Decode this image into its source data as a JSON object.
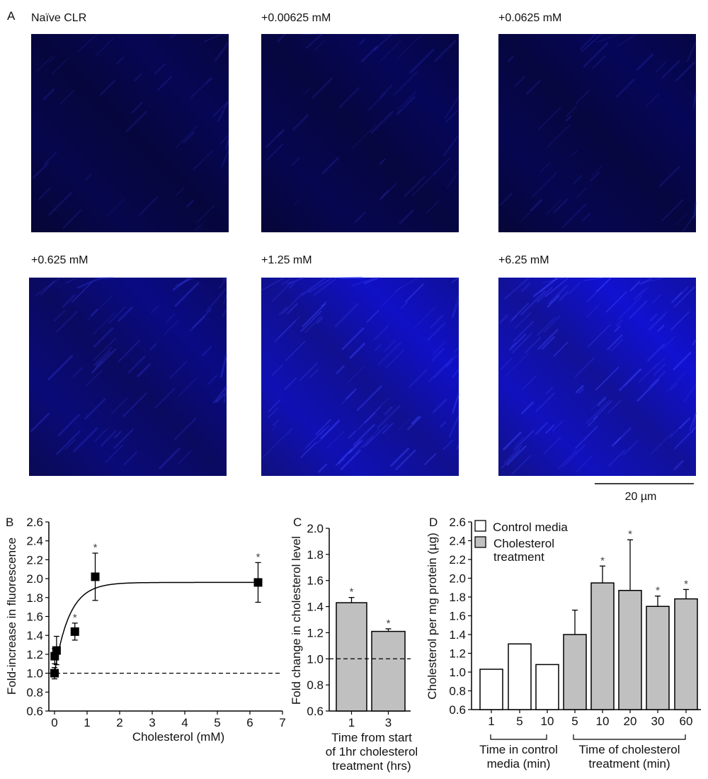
{
  "panel_a": {
    "label": "A",
    "images": [
      {
        "title": "Naïve CLR",
        "intensity": 0.08
      },
      {
        "title": "+0.00625 mM",
        "intensity": 0.1
      },
      {
        "title": "+0.0625 mM",
        "intensity": 0.1
      },
      {
        "title": "+0.625 mM",
        "intensity": 0.3
      },
      {
        "title": "+1.25 mM",
        "intensity": 0.6
      },
      {
        "title": "+6.25 mM",
        "intensity": 0.65
      }
    ],
    "scale_bar": "20 µm"
  },
  "chart_data": [
    {
      "panel": "B",
      "type": "scatter",
      "xlabel": "Cholesterol (mM)",
      "ylabel": "Fold-increase in fluorescence",
      "xlim": [
        0,
        7
      ],
      "ylim": [
        0.6,
        2.6
      ],
      "xticks": [
        "0",
        "1",
        "2",
        "3",
        "4",
        "5",
        "6",
        "7"
      ],
      "yticks": [
        "0.6",
        "0.8",
        "1.0",
        "1.2",
        "1.4",
        "1.6",
        "1.8",
        "2.0",
        "2.2",
        "2.4",
        "2.6"
      ],
      "x": [
        0,
        0.00625,
        0.0625,
        0.625,
        1.25,
        6.25
      ],
      "y": [
        1.0,
        1.18,
        1.24,
        1.44,
        2.02,
        1.96
      ],
      "error": [
        0.06,
        0.08,
        0.15,
        0.09,
        0.25,
        0.21
      ],
      "significant": [
        false,
        false,
        false,
        true,
        true,
        true
      ],
      "fit": {
        "type": "exponential-rise",
        "baseline": 1.0,
        "plateau": 1.96,
        "rate": 2.2
      },
      "reference_line": 1.0,
      "asterisk": "*"
    },
    {
      "panel": "C",
      "type": "bar",
      "ylabel": "Fold change in cholesterol level",
      "xlabel_lines": [
        "Time from start",
        "of 1hr cholesterol",
        "treatment (hrs)"
      ],
      "ylim": [
        0.6,
        2.0
      ],
      "yticks": [
        "0.6",
        "0.8",
        "1.0",
        "1.2",
        "1.4",
        "1.6",
        "1.8",
        "2.0"
      ],
      "categories": [
        "1",
        "3"
      ],
      "values": [
        1.43,
        1.21
      ],
      "error": [
        0.04,
        0.02
      ],
      "significant": [
        true,
        true
      ],
      "reference_line": 1.0,
      "asterisk": "*"
    },
    {
      "panel": "D",
      "type": "bar",
      "ylabel": "Cholesterol per mg protein (µg)",
      "ylim": [
        0.6,
        2.6
      ],
      "yticks": [
        "0.6",
        "0.8",
        "1.0",
        "1.2",
        "1.4",
        "1.6",
        "1.8",
        "2.0",
        "2.2",
        "2.4",
        "2.6"
      ],
      "legend": [
        {
          "label": "Control media",
          "color": "#ffffff"
        },
        {
          "label_lines": [
            "Cholesterol",
            "treatment"
          ],
          "color": "#c0c0c0"
        }
      ],
      "categories": [
        "1",
        "5",
        "10",
        "5",
        "10",
        "20",
        "30",
        "60"
      ],
      "groups": [
        "control",
        "control",
        "control",
        "chol",
        "chol",
        "chol",
        "chol",
        "chol"
      ],
      "values": [
        1.03,
        1.3,
        1.08,
        1.4,
        1.95,
        1.87,
        1.7,
        1.78
      ],
      "error": [
        null,
        null,
        null,
        0.26,
        0.18,
        0.54,
        0.11,
        0.1
      ],
      "significant": [
        false,
        false,
        false,
        false,
        true,
        true,
        true,
        true
      ],
      "group_labels": [
        {
          "lines": [
            "Time in control",
            "media (min)"
          ]
        },
        {
          "lines": [
            "Time of cholesterol",
            "treatment (min)"
          ]
        }
      ],
      "asterisk": "*"
    }
  ]
}
